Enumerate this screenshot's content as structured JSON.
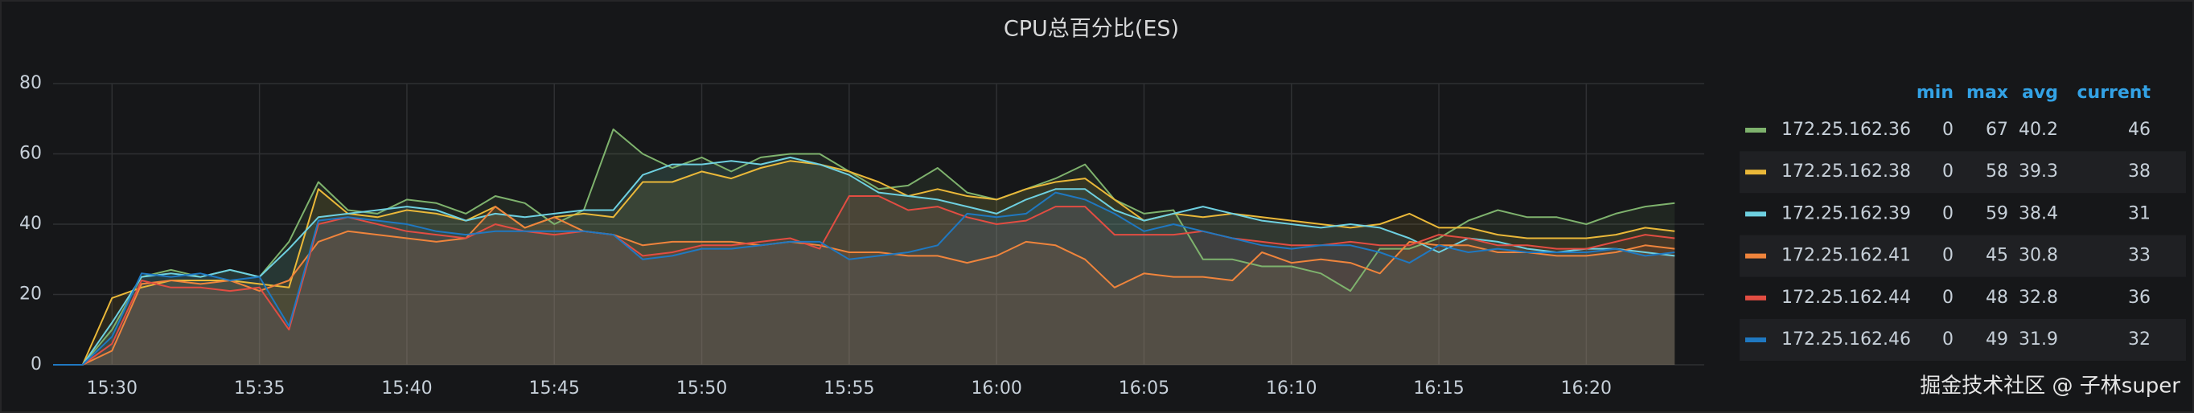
{
  "chart_data": {
    "type": "line",
    "title": "CPU总百分比(ES)",
    "x": [
      "15:28",
      "15:29",
      "15:30",
      "15:31",
      "15:32",
      "15:33",
      "15:34",
      "15:35",
      "15:36",
      "15:37",
      "15:38",
      "15:39",
      "15:40",
      "15:41",
      "15:42",
      "15:43",
      "15:44",
      "15:45",
      "15:46",
      "15:47",
      "15:48",
      "15:49",
      "15:50",
      "15:51",
      "15:52",
      "15:53",
      "15:54",
      "15:55",
      "15:56",
      "15:57",
      "15:58",
      "15:59",
      "16:00",
      "16:01",
      "16:02",
      "16:03",
      "16:04",
      "16:05",
      "16:06",
      "16:07",
      "16:08",
      "16:09",
      "16:10",
      "16:11",
      "16:12",
      "16:13",
      "16:14",
      "16:15",
      "16:16",
      "16:17",
      "16:18",
      "16:19",
      "16:20",
      "16:21",
      "16:22",
      "16:23"
    ],
    "xlim": [
      "15:28",
      "16:24"
    ],
    "xticks": [
      "15:30",
      "15:35",
      "15:40",
      "15:45",
      "15:50",
      "15:55",
      "16:00",
      "16:05",
      "16:10",
      "16:15",
      "16:20"
    ],
    "ylim": [
      0,
      80
    ],
    "yticks": [
      0,
      20,
      40,
      60,
      80
    ],
    "grid": true,
    "fill": true,
    "legend_columns": [
      "min",
      "max",
      "avg",
      "current"
    ],
    "series": [
      {
        "name": "172.25.162.36",
        "color": "#7eb26d",
        "min": 0,
        "max": 67,
        "avg": 40.2,
        "current": 46,
        "values": [
          0,
          0,
          10,
          25,
          27,
          25,
          27,
          25,
          35,
          52,
          44,
          43,
          47,
          46,
          43,
          48,
          46,
          40,
          44,
          67,
          60,
          56,
          59,
          55,
          59,
          60,
          60,
          55,
          50,
          51,
          56,
          49,
          47,
          50,
          53,
          57,
          47,
          43,
          44,
          30,
          30,
          28,
          28,
          26,
          21,
          33,
          33,
          36,
          41,
          44,
          42,
          42,
          40,
          43,
          45,
          46
        ]
      },
      {
        "name": "172.25.162.38",
        "color": "#eab839",
        "min": 0,
        "max": 58,
        "avg": 39.3,
        "current": 38,
        "values": [
          0,
          0,
          19,
          22,
          24,
          24,
          24,
          23,
          22,
          50,
          43,
          42,
          44,
          43,
          41,
          45,
          39,
          42,
          43,
          42,
          52,
          52,
          55,
          53,
          56,
          58,
          57,
          55,
          52,
          48,
          50,
          48,
          47,
          50,
          52,
          53,
          47,
          41,
          43,
          42,
          43,
          42,
          41,
          40,
          39,
          40,
          43,
          39,
          39,
          37,
          36,
          36,
          36,
          37,
          39,
          38
        ]
      },
      {
        "name": "172.25.162.39",
        "color": "#6ed0e0",
        "min": 0,
        "max": 59,
        "avg": 38.4,
        "current": 31,
        "values": [
          0,
          0,
          12,
          25,
          26,
          25,
          27,
          25,
          33,
          42,
          43,
          44,
          45,
          44,
          41,
          43,
          42,
          43,
          44,
          44,
          54,
          57,
          57,
          58,
          57,
          59,
          57,
          54,
          49,
          48,
          47,
          45,
          43,
          47,
          50,
          50,
          44,
          41,
          43,
          45,
          43,
          41,
          40,
          39,
          40,
          39,
          36,
          32,
          36,
          35,
          33,
          32,
          33,
          33,
          32,
          31
        ]
      },
      {
        "name": "172.25.162.41",
        "color": "#ef843c",
        "min": 0,
        "max": 45,
        "avg": 30.8,
        "current": 33,
        "values": [
          0,
          0,
          4,
          23,
          24,
          23,
          24,
          21,
          24,
          35,
          38,
          37,
          36,
          35,
          36,
          45,
          39,
          42,
          38,
          37,
          34,
          35,
          35,
          35,
          34,
          35,
          34,
          32,
          32,
          31,
          31,
          29,
          31,
          35,
          34,
          30,
          22,
          26,
          25,
          25,
          24,
          32,
          29,
          30,
          29,
          26,
          35,
          34,
          34,
          32,
          32,
          31,
          31,
          32,
          34,
          33
        ]
      },
      {
        "name": "172.25.162.44",
        "color": "#e24d42",
        "min": 0,
        "max": 48,
        "avg": 32.8,
        "current": 36,
        "values": [
          0,
          0,
          6,
          24,
          22,
          22,
          21,
          22,
          10,
          40,
          42,
          40,
          38,
          37,
          36,
          40,
          38,
          37,
          38,
          37,
          31,
          32,
          34,
          34,
          35,
          36,
          33,
          48,
          48,
          44,
          45,
          42,
          40,
          41,
          45,
          45,
          37,
          37,
          37,
          38,
          36,
          35,
          34,
          34,
          35,
          34,
          34,
          37,
          36,
          34,
          34,
          33,
          33,
          35,
          37,
          36
        ]
      },
      {
        "name": "172.25.162.46",
        "color": "#1f78c1",
        "min": 0,
        "max": 49,
        "avg": 31.9,
        "current": 32,
        "values": [
          0,
          0,
          8,
          26,
          25,
          26,
          24,
          25,
          11,
          41,
          42,
          41,
          40,
          38,
          37,
          38,
          38,
          38,
          38,
          37,
          30,
          31,
          33,
          33,
          34,
          35,
          35,
          30,
          31,
          32,
          34,
          43,
          42,
          43,
          49,
          47,
          43,
          38,
          40,
          38,
          36,
          34,
          33,
          34,
          34,
          32,
          29,
          34,
          32,
          33,
          32,
          32,
          32,
          33,
          31,
          32
        ]
      }
    ],
    "watermark": "掘金技术社区 @ 子林super"
  }
}
